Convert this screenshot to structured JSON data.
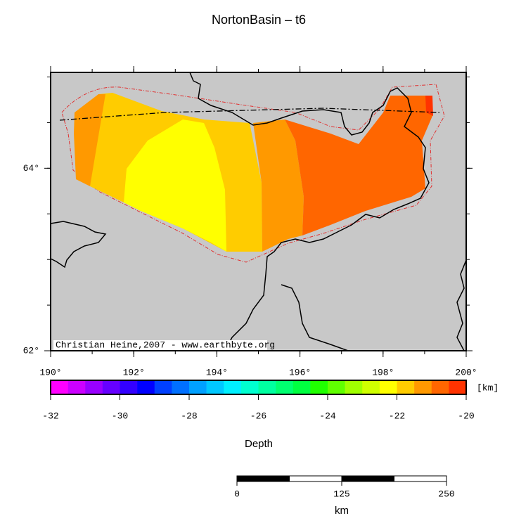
{
  "title": "NortonBasin – t6",
  "map": {
    "xlim": [
      190,
      200
    ],
    "ylim": [
      62,
      65.05
    ],
    "xticks": [
      {
        "value": 190,
        "label": "190°"
      },
      {
        "value": 192,
        "label": "192°"
      },
      {
        "value": 194,
        "label": "194°"
      },
      {
        "value": 196,
        "label": "196°"
      },
      {
        "value": 198,
        "label": "198°"
      },
      {
        "value": 200,
        "label": "200°"
      }
    ],
    "yticks": [
      {
        "value": 62,
        "label": "62°"
      },
      {
        "value": 64,
        "label": "64°"
      }
    ],
    "credit": "Christian Heine,2007 - www.earthbyte.org"
  },
  "colorbar": {
    "label": "Depth",
    "unit": "[km]",
    "lim": [
      -32,
      -20
    ],
    "ticks": [
      -32,
      -30,
      -28,
      -26,
      -24,
      -22,
      -20
    ],
    "colors": [
      "#ff00ff",
      "#cc00ff",
      "#9900ff",
      "#6600ff",
      "#3300ff",
      "#0000ff",
      "#0040ff",
      "#0070ff",
      "#00a0ff",
      "#00c8ff",
      "#00f0ff",
      "#00ffd0",
      "#00ffa0",
      "#00ff70",
      "#00ff40",
      "#20ff00",
      "#60ff00",
      "#a0ff00",
      "#d0ff00",
      "#ffff00",
      "#ffcc00",
      "#ff9900",
      "#ff6600",
      "#ff3300"
    ]
  },
  "scale_bar": {
    "unit": "km",
    "lim": [
      0,
      250
    ],
    "ticks": [
      0,
      125,
      250
    ]
  }
}
